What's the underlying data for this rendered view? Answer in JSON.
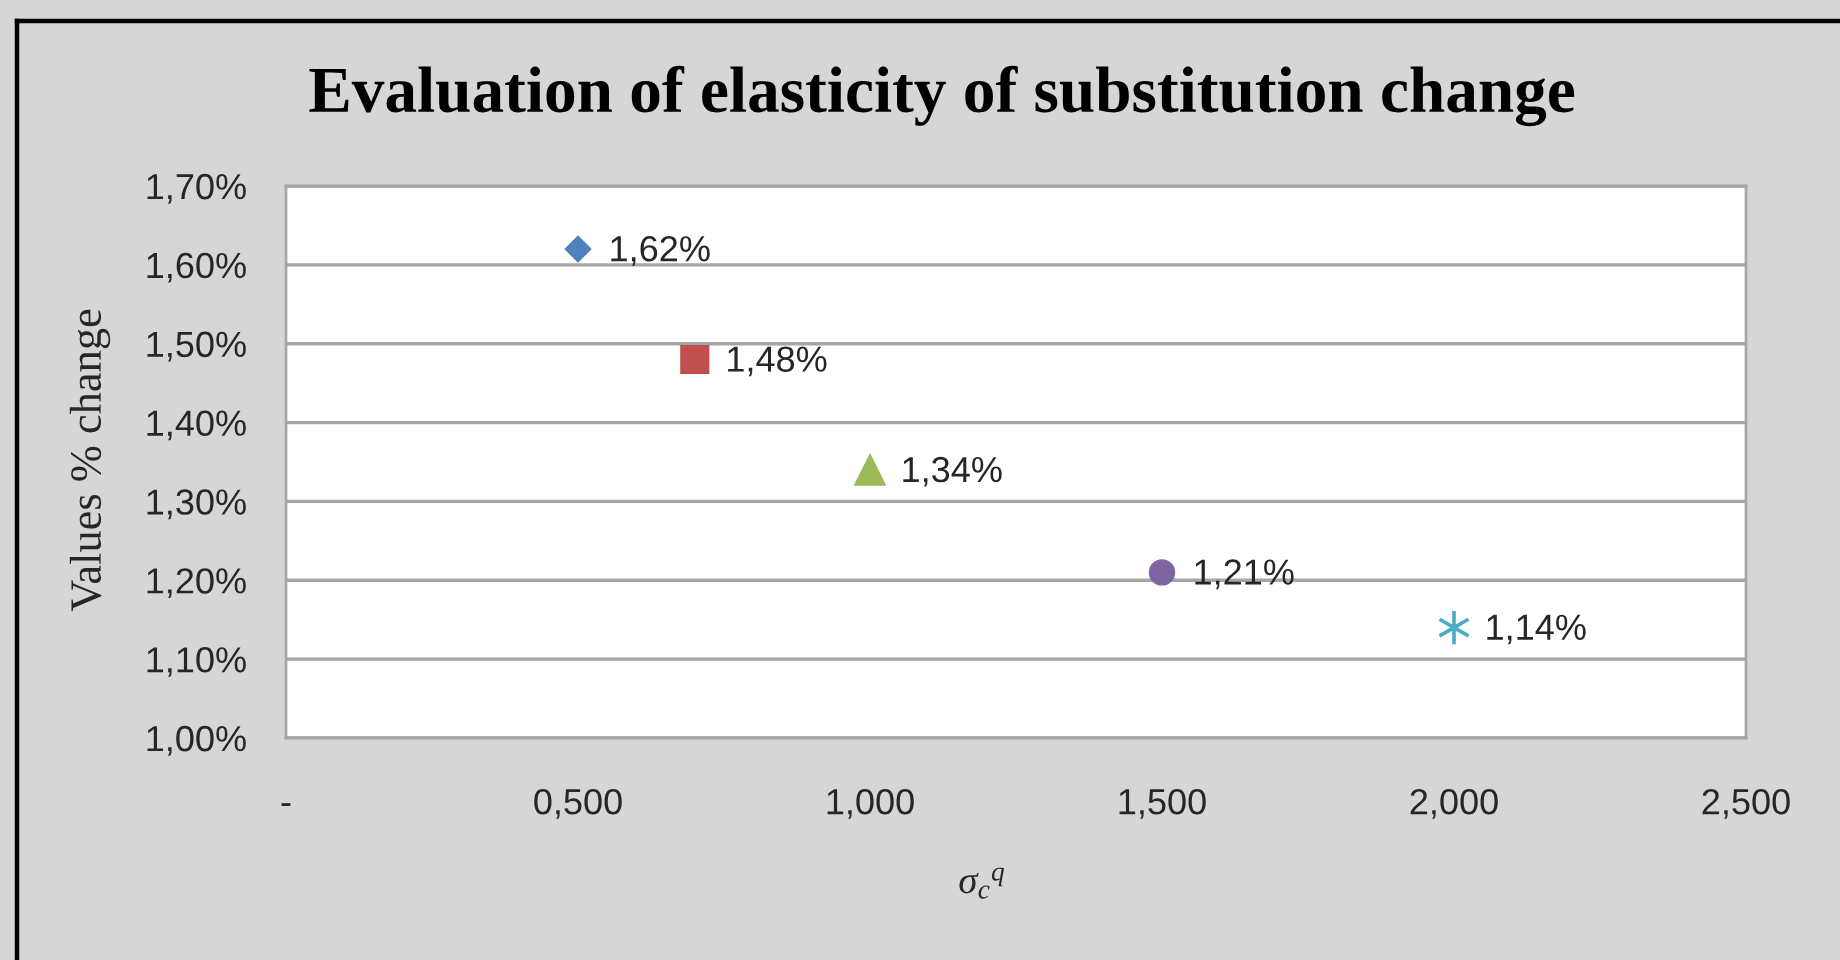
{
  "chart_data": {
    "type": "scatter",
    "title": "Evaluation of elasticity of substitution change",
    "xlabel": "σ$_{c}$$^{q}$",
    "ylabel": "Values % change",
    "xlim": [
      0,
      2.5
    ],
    "xticks": [
      {
        "value": 0,
        "label": "-"
      },
      {
        "value": 0.5,
        "label": "0,500"
      },
      {
        "value": 1.0,
        "label": "1,000"
      },
      {
        "value": 1.5,
        "label": "1,500"
      },
      {
        "value": 2.0,
        "label": "2,000"
      },
      {
        "value": 2.5,
        "label": "2,500"
      }
    ],
    "ylim": [
      1.0,
      1.7
    ],
    "yticks": [
      {
        "value": 1.0,
        "label": "1,00%"
      },
      {
        "value": 1.1,
        "label": "1,10%"
      },
      {
        "value": 1.2,
        "label": "1,20%"
      },
      {
        "value": 1.3,
        "label": "1,30%"
      },
      {
        "value": 1.4,
        "label": "1,40%"
      },
      {
        "value": 1.5,
        "label": "1,50%"
      },
      {
        "value": 1.6,
        "label": "1,60%"
      },
      {
        "value": 1.7,
        "label": "1,70%"
      }
    ],
    "grid": "y",
    "series": [
      {
        "color": "#4f81bd",
        "marker": "diamond",
        "x": [
          0.5
        ],
        "values": [
          1.62
        ],
        "value_labels": [
          "1,62%"
        ]
      },
      {
        "color": "#c0504d",
        "marker": "square",
        "x": [
          0.7
        ],
        "values": [
          1.48
        ],
        "value_labels": [
          "1,48%"
        ]
      },
      {
        "color": "#9bbb59",
        "marker": "triangle",
        "x": [
          1.0
        ],
        "values": [
          1.34
        ],
        "value_labels": [
          "1,34%"
        ]
      },
      {
        "color": "#8064a2",
        "marker": "circle",
        "x": [
          1.5
        ],
        "values": [
          1.21
        ],
        "value_labels": [
          "1,21%"
        ]
      },
      {
        "color": "#4bacc6",
        "marker": "cross",
        "x": [
          2.0
        ],
        "values": [
          1.14
        ],
        "value_labels": [
          "1,14%"
        ]
      }
    ]
  }
}
